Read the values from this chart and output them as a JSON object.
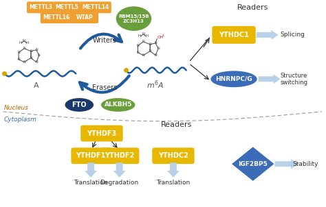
{
  "bg_color": "#ffffff",
  "orange_color": "#F0A030",
  "gold_color": "#D4A800",
  "gold_color2": "#E8B800",
  "green_circle_color": "#6A9E3A",
  "dark_blue_color": "#1A3A6B",
  "blue_oval_color": "#3B6CB7",
  "light_blue_arrow": "#B8D0E8",
  "arrow_blue": "#1E5A9C",
  "nucleus_label_color": "#CC6600",
  "cytoplasm_label_color": "#3B6CB7",
  "text_dark": "#333333",
  "ch3_color": "#CC0000",
  "ring_color": "#555555",
  "writers_label": "Writers",
  "erasers_label": "Erasers",
  "readers_label": "Readers",
  "nucleus_label": "Nucleus",
  "cytoplasm_label": "Cytoplasm",
  "A_label": "A",
  "splicing_label": "Splicing",
  "structure_switching_label": "Structure\nswitching",
  "stability_label": "Stability",
  "igf2bp5_label": "IGF2BP5",
  "rbm_label": "RBM15/15B\nZC3H13",
  "cytoplasm_reader_outcomes": [
    "Translation",
    "Degradation",
    "Translation"
  ]
}
